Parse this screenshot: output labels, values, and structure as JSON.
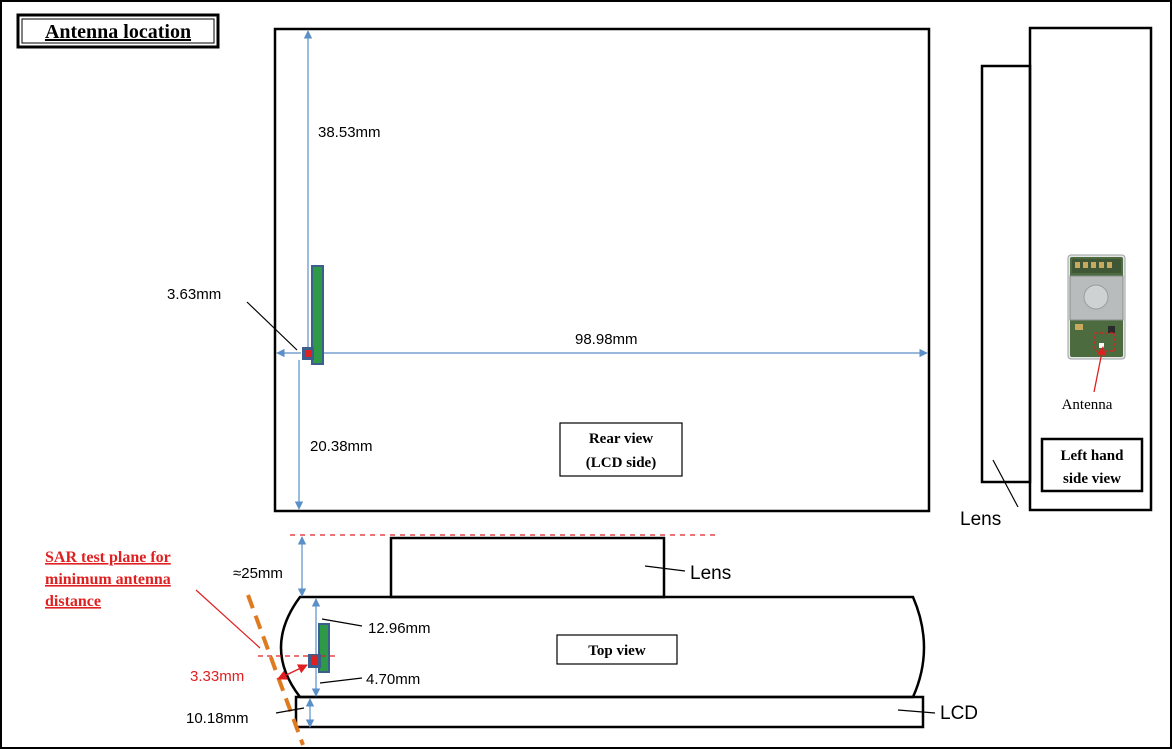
{
  "title": "Antenna location",
  "views": {
    "rear": [
      "Rear view",
      "(LCD side)"
    ],
    "left_side": [
      "Left hand",
      "side view"
    ],
    "top": "Top view"
  },
  "labels": {
    "antenna": "Antenna",
    "lens_side": "Lens",
    "lens_top": "Lens",
    "lcd": "LCD"
  },
  "dimensions": {
    "rear_top": "38.53mm",
    "rear_left": "3.63mm",
    "rear_right": "98.98mm",
    "rear_bottom": "20.38mm",
    "top_gap": "≈25mm",
    "top_upper": "12.96mm",
    "top_lower": "4.70mm",
    "top_bottom": "10.18mm",
    "top_sar": "3.33mm"
  },
  "sar_note": [
    "SAR test plane for",
    "minimum antenna",
    "distance"
  ],
  "colors": {
    "dimension": "#5b8fc7",
    "antenna_fill": "#2e9a47",
    "antenna_edge": "#3b5e8c",
    "feed_point": "#e02020",
    "sar_red": "#e02020",
    "sar_plane": "#e07a1f",
    "outline": "#000000"
  }
}
